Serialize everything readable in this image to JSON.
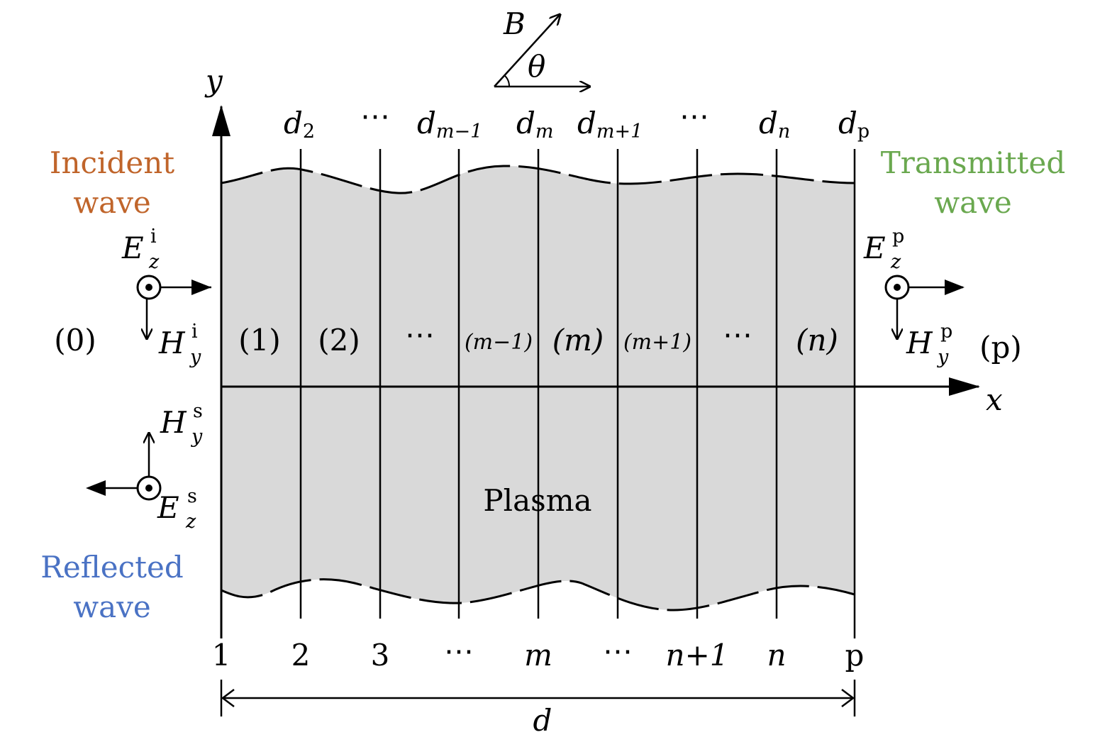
{
  "colors": {
    "plasma_fill": "#d9d9d9",
    "incident": "#c0652b",
    "transmitted": "#6aa84f",
    "reflected": "#4a72c4",
    "line": "#000000"
  },
  "axes": {
    "y_label": "y",
    "x_label": "x"
  },
  "field_B": {
    "label": "B",
    "angle_label": "θ"
  },
  "boundaries_top": [
    {
      "main": "d",
      "sub": "2"
    },
    {
      "main": "⋯",
      "sub": ""
    },
    {
      "main": "d",
      "sub": "m−1"
    },
    {
      "main": "d",
      "sub": "m"
    },
    {
      "main": "d",
      "sub": "m+1"
    },
    {
      "main": "⋯",
      "sub": ""
    },
    {
      "main": "d",
      "sub": "n"
    },
    {
      "main": "d",
      "sub": "p"
    }
  ],
  "boundaries_bottom": [
    "1",
    "2",
    "3",
    "⋯",
    "m",
    "⋯",
    "n+1",
    "n",
    "p"
  ],
  "regions": [
    "(0)",
    "(1)",
    "(2)",
    "⋯",
    "(m−1)",
    "(m)",
    "(m+1)",
    "⋯",
    "(n)",
    "(p)"
  ],
  "waves": {
    "incident": {
      "line1": "Incident",
      "line2": "wave",
      "E": "E",
      "E_sup": "i",
      "E_sub": "z",
      "H": "H",
      "H_sup": "i",
      "H_sub": "y"
    },
    "transmitted": {
      "line1": "Transmitted",
      "line2": "wave",
      "E": "E",
      "E_sup": "p",
      "E_sub": "z",
      "H": "H",
      "H_sup": "p",
      "H_sub": "y"
    },
    "reflected": {
      "line1": "Reflected",
      "line2": "wave",
      "E": "E",
      "E_sup": "s",
      "E_sub": "z",
      "H": "H",
      "H_sup": "s",
      "H_sub": "y"
    }
  },
  "medium_label": "Plasma",
  "thickness_label": "d"
}
